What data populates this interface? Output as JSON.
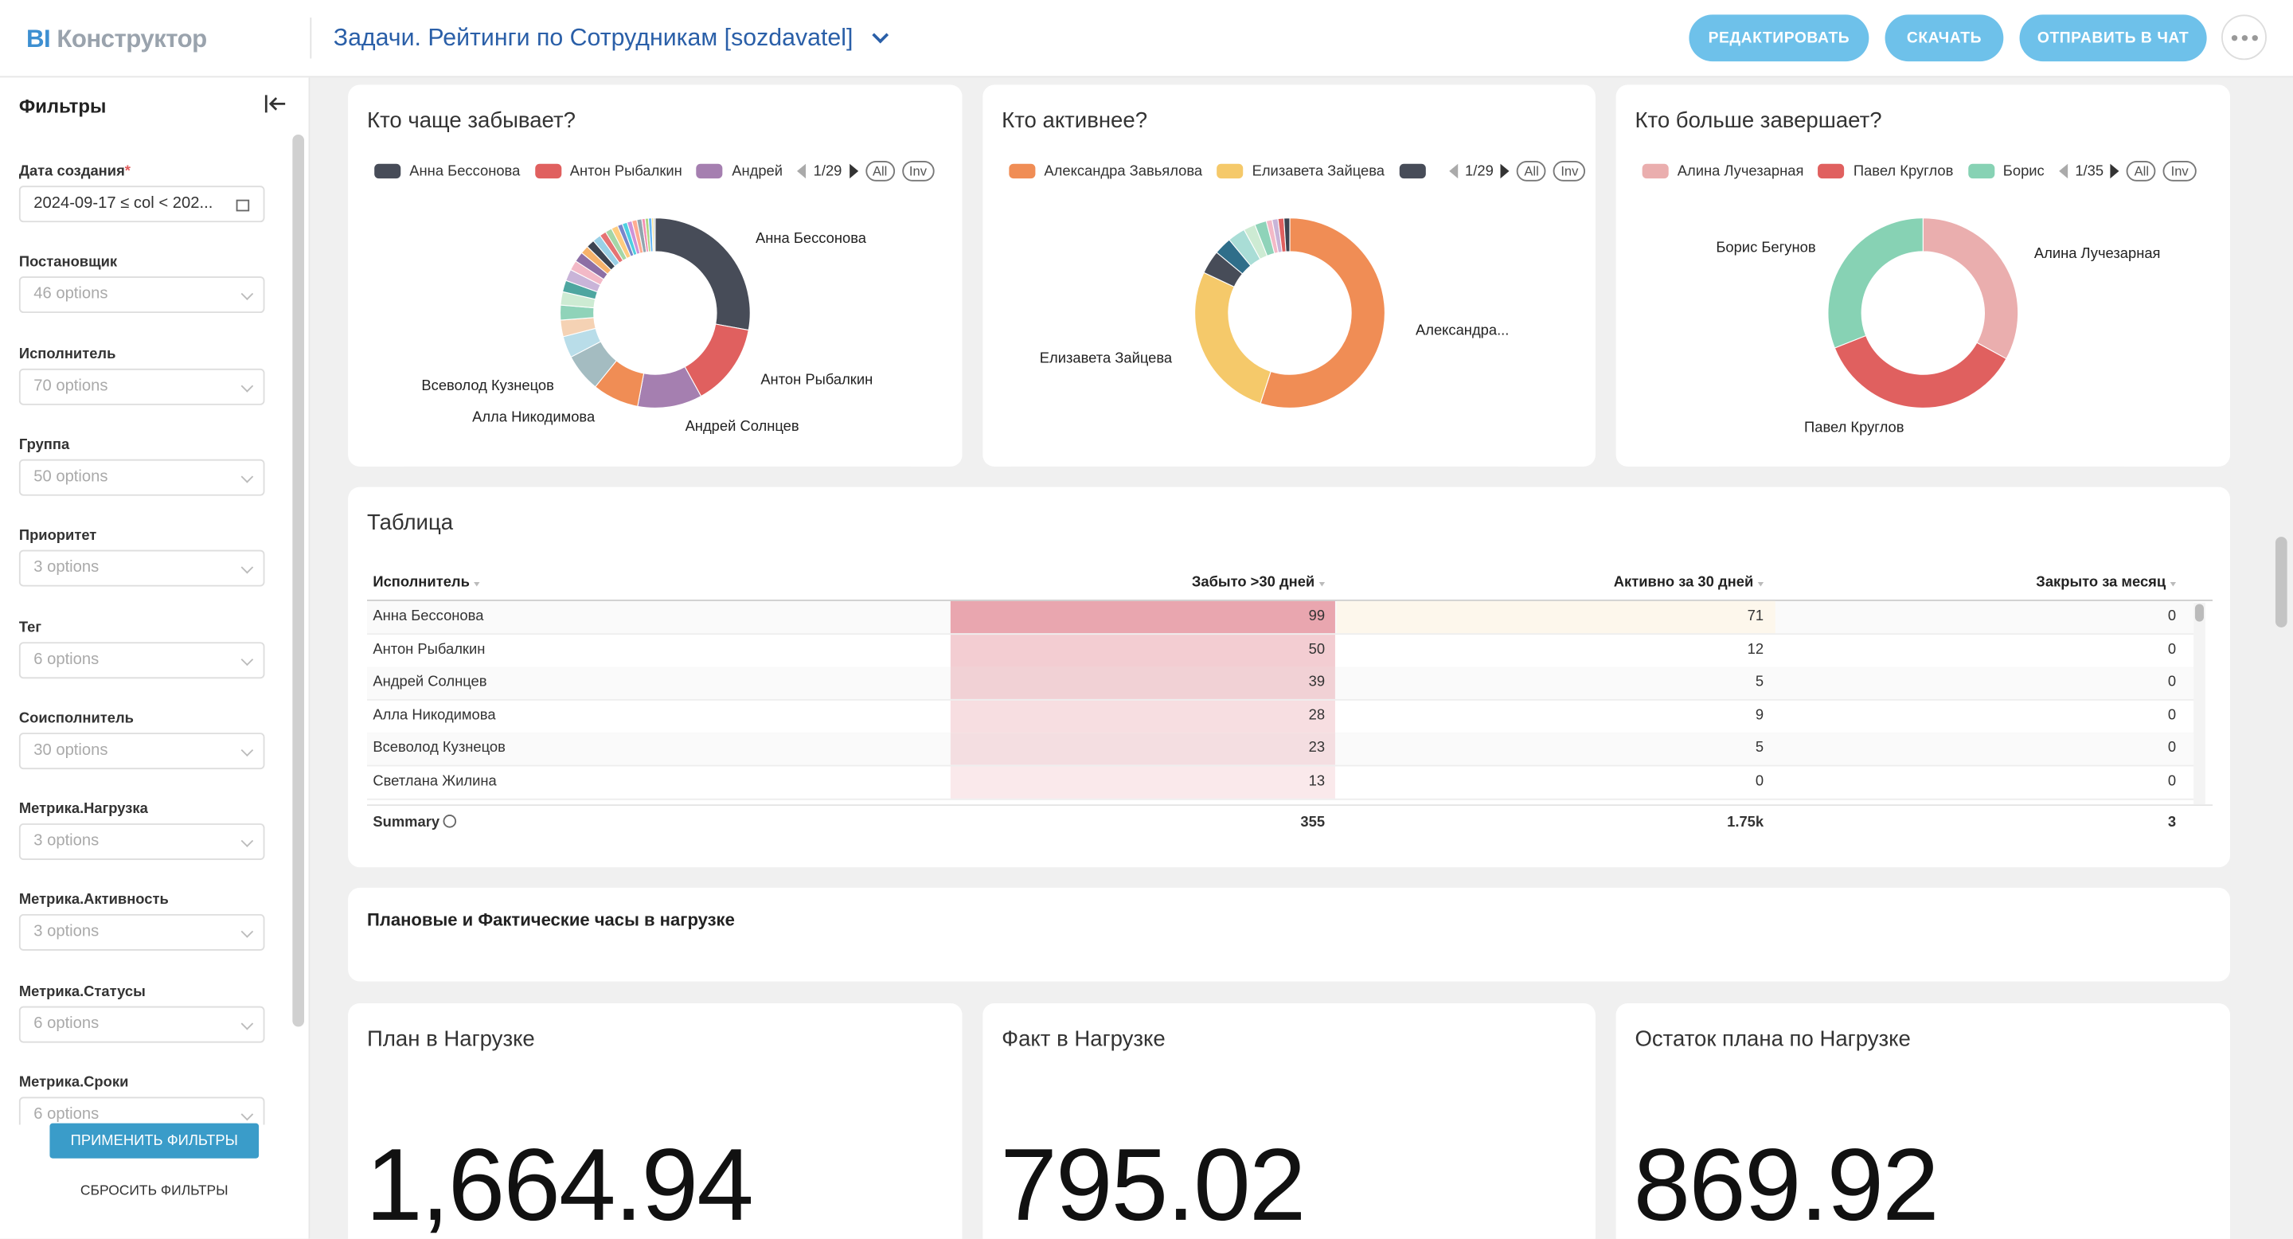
{
  "header": {
    "logo_mark": "BI",
    "logo": "Конструктор",
    "title": "Задачи. Рейтинги по Сотрудникам [sozdavatel]",
    "buttons": [
      "РЕДАКТИРОВАТЬ",
      "СКАЧАТЬ",
      "ОТПРАВИТЬ В ЧАТ"
    ]
  },
  "sidebar": {
    "title": "Фильтры",
    "required_mark": "*",
    "filters": [
      {
        "label": "Дата создания",
        "value": "2024-09-17 ≤ col < 202..."
      },
      {
        "label": "Постановщик",
        "placeholder": "46 options"
      },
      {
        "label": "Исполнитель",
        "placeholder": "70 options"
      },
      {
        "label": "Группа",
        "placeholder": "50 options"
      },
      {
        "label": "Приоритет",
        "placeholder": "3 options"
      },
      {
        "label": "Тег",
        "placeholder": "6 options"
      },
      {
        "label": "Соисполнитель",
        "placeholder": "30 options"
      },
      {
        "label": "Метрика.Нагрузка",
        "placeholder": "3 options"
      },
      {
        "label": "Метрика.Активность",
        "placeholder": "3 options"
      },
      {
        "label": "Метрика.Статусы",
        "placeholder": "6 options"
      },
      {
        "label": "Метрика.Сроки",
        "placeholder": "6 options"
      }
    ],
    "apply": "ПРИМЕНИТЬ ФИЛЬТРЫ",
    "reset": "СБРОСИТЬ ФИЛЬТРЫ"
  },
  "chart_data": [
    {
      "type": "pie",
      "title": "Кто чаще забывает?",
      "legend": [
        "Анна Бессонова",
        "Антон Рыбалкин",
        "Андрей"
      ],
      "pager": "1/29",
      "legend_buttons": [
        "All",
        "Inv"
      ],
      "categories": [
        "Анна Бессонова",
        "Антон Рыбалкин",
        "Андрей Солнцев",
        "Алла Никодимова",
        "Всеволод Кузнецов",
        null,
        null,
        null,
        null,
        null,
        null,
        null,
        null,
        null,
        null,
        null,
        null,
        null,
        null,
        null,
        null,
        null,
        null,
        null,
        null,
        null,
        null,
        null,
        null
      ],
      "values": [
        99,
        50,
        39,
        28,
        23,
        13,
        10,
        9,
        8,
        7,
        7,
        6,
        6,
        5,
        5,
        5,
        4,
        4,
        4,
        3,
        3,
        3,
        3,
        3,
        2,
        2,
        2,
        1,
        1
      ],
      "colors": [
        "#474c58",
        "#e0605f",
        "#a57fb0",
        "#f08d55",
        "#a4bcc1",
        "#b9dde9",
        "#f5d2b4",
        "#8fd3b9",
        "#cdebd3",
        "#4ea6a0",
        "#c9b4d8",
        "#f3b9c7",
        "#8d6fa5",
        "#f6b26b",
        "#3d4451",
        "#9ad0e6",
        "#e57373",
        "#a5d6a7",
        "#ffcc80",
        "#7986cb",
        "#4dd0e1",
        "#ce93d8",
        "#ffab91",
        "#90a4ae",
        "#f48fb1",
        "#aed581",
        "#64b5f6",
        "#ffd54f",
        "#b0bec5"
      ]
    },
    {
      "type": "pie",
      "title": "Кто активнее?",
      "legend": [
        "Александра Завьялова",
        "Елизавета Зайцева",
        null
      ],
      "pager": "1/29",
      "legend_buttons": [
        "All",
        "Inv"
      ],
      "categories": [
        "Александра...",
        "Елизавета Зайцева",
        null,
        null,
        null,
        null,
        null,
        null,
        null,
        null,
        null
      ],
      "values": [
        55,
        27,
        4,
        3,
        3,
        2,
        2,
        1,
        1,
        1,
        1
      ],
      "colors": [
        "#f08d55",
        "#f5c96a",
        "#474c58",
        "#2f6e8a",
        "#a9ddd6",
        "#cdebd3",
        "#8fd3b9",
        "#f3b9c7",
        "#c9b4d8",
        "#e0605f",
        "#3d4451"
      ]
    },
    {
      "type": "pie",
      "title": "Кто больше завершает?",
      "legend": [
        "Алина Лучезарная",
        "Павел  Круглов",
        "Борис"
      ],
      "pager": "1/35",
      "legend_buttons": [
        "All",
        "Inv"
      ],
      "categories": [
        "Алина Лучезарная",
        "Павел  Круглов",
        "Борис Бегунов"
      ],
      "values": [
        33,
        36,
        31
      ],
      "colors": [
        "#eaaeae",
        "#e0605f",
        "#87d2b4"
      ]
    }
  ],
  "table": {
    "title": "Таблица",
    "columns": [
      "Исполнитель",
      "Забыто >30 дней",
      "Активно за 30 дней",
      "Закрыто за месяц"
    ],
    "rows": [
      [
        "Анна Бессонова",
        99,
        71,
        0
      ],
      [
        "Антон Рыбалкин",
        50,
        12,
        0
      ],
      [
        "Андрей Солнцев",
        39,
        5,
        0
      ],
      [
        "Алла Никодимова",
        28,
        9,
        0
      ],
      [
        "Всеволод Кузнецов",
        23,
        5,
        0
      ],
      [
        "Светлана Жилина",
        13,
        0,
        0
      ]
    ],
    "summary": {
      "label": "Summary",
      "values": [
        355,
        "1.75k",
        3
      ]
    }
  },
  "plan_title": "Плановые и Фактические часы в нагрузке",
  "kpis": [
    {
      "title": "План в Нагрузке",
      "value": "1,664.94"
    },
    {
      "title": "Факт в Нагрузке",
      "value": "795.02"
    },
    {
      "title": "Остаток плана по Нагрузке",
      "value": "869.92"
    }
  ]
}
